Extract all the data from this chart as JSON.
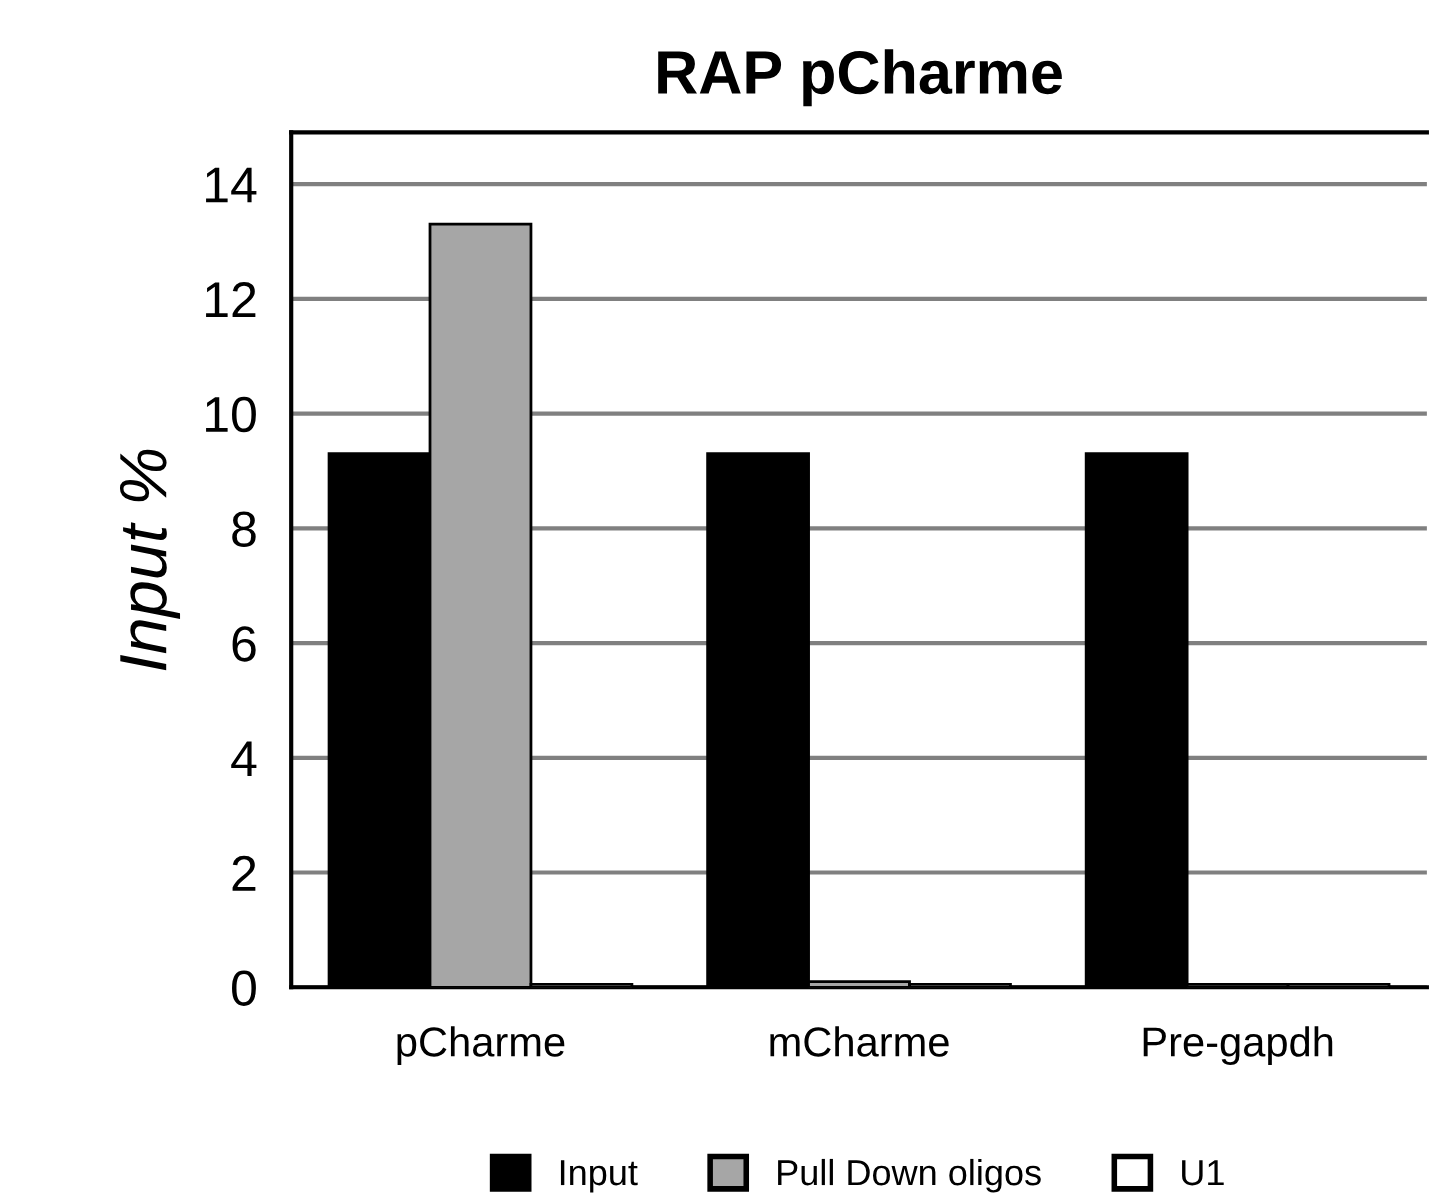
{
  "chart_data": {
    "type": "bar",
    "title": "RAP pCharme",
    "ylabel": "Input %",
    "categories": [
      "pCharme",
      "mCharme",
      "Pre-gapdh"
    ],
    "series": [
      {
        "name": "Input",
        "color": "#000000",
        "values": [
          9.3,
          9.3,
          9.3
        ]
      },
      {
        "name": "Pull Down oligos",
        "color": "#a6a6a6",
        "values": [
          13.3,
          0.1,
          0.05
        ]
      },
      {
        "name": "U1",
        "color": "#ffffff",
        "values": [
          0.05,
          0.05,
          0.05
        ]
      }
    ],
    "ylim": [
      0,
      14.9
    ],
    "yticks": [
      0,
      2,
      4,
      6,
      8,
      10,
      12,
      14
    ],
    "grid": "y",
    "legend": "bottom"
  }
}
